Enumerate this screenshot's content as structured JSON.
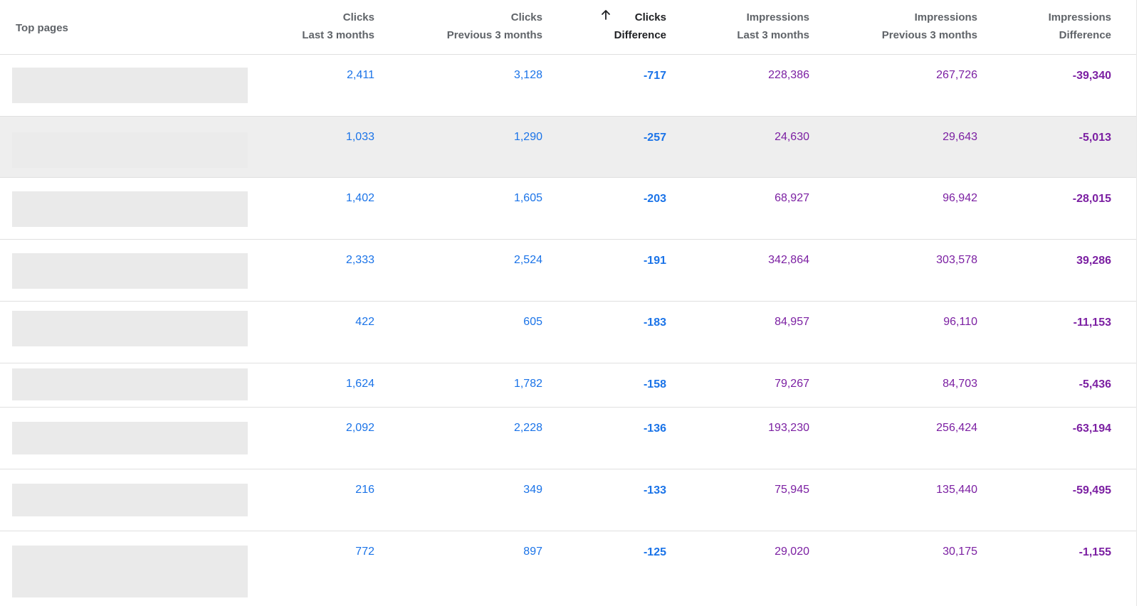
{
  "header": {
    "top_pages": "Top pages",
    "columns": [
      {
        "line1": "Clicks",
        "line2": "Last 3 months"
      },
      {
        "line1": "Clicks",
        "line2": "Previous 3 months"
      },
      {
        "line1": "Clicks",
        "line2": "Difference"
      },
      {
        "line1": "Impressions",
        "line2": "Last 3 months"
      },
      {
        "line1": "Impressions",
        "line2": "Previous 3 months"
      },
      {
        "line1": "Impressions",
        "line2": "Difference"
      }
    ],
    "sort_icon": "arrow-up-icon"
  },
  "colors": {
    "clicks": "#1a73e8",
    "impressions": "#7b1fa2",
    "placeholder": "#eaeaea",
    "hover_row": "#eeeeee"
  },
  "rows": [
    {
      "clicks_last": "2,411",
      "clicks_prev": "3,128",
      "clicks_diff": "-717",
      "impr_last": "228,386",
      "impr_prev": "267,726",
      "impr_diff": "-39,340"
    },
    {
      "clicks_last": "1,033",
      "clicks_prev": "1,290",
      "clicks_diff": "-257",
      "impr_last": "24,630",
      "impr_prev": "29,643",
      "impr_diff": "-5,013"
    },
    {
      "clicks_last": "1,402",
      "clicks_prev": "1,605",
      "clicks_diff": "-203",
      "impr_last": "68,927",
      "impr_prev": "96,942",
      "impr_diff": "-28,015"
    },
    {
      "clicks_last": "2,333",
      "clicks_prev": "2,524",
      "clicks_diff": "-191",
      "impr_last": "342,864",
      "impr_prev": "303,578",
      "impr_diff": "39,286"
    },
    {
      "clicks_last": "422",
      "clicks_prev": "605",
      "clicks_diff": "-183",
      "impr_last": "84,957",
      "impr_prev": "96,110",
      "impr_diff": "-11,153"
    },
    {
      "clicks_last": "1,624",
      "clicks_prev": "1,782",
      "clicks_diff": "-158",
      "impr_last": "79,267",
      "impr_prev": "84,703",
      "impr_diff": "-5,436"
    },
    {
      "clicks_last": "2,092",
      "clicks_prev": "2,228",
      "clicks_diff": "-136",
      "impr_last": "193,230",
      "impr_prev": "256,424",
      "impr_diff": "-63,194"
    },
    {
      "clicks_last": "216",
      "clicks_prev": "349",
      "clicks_diff": "-133",
      "impr_last": "75,945",
      "impr_prev": "135,440",
      "impr_diff": "-59,495"
    },
    {
      "clicks_last": "772",
      "clicks_prev": "897",
      "clicks_diff": "-125",
      "impr_last": "29,020",
      "impr_prev": "30,175",
      "impr_diff": "-1,155"
    }
  ]
}
